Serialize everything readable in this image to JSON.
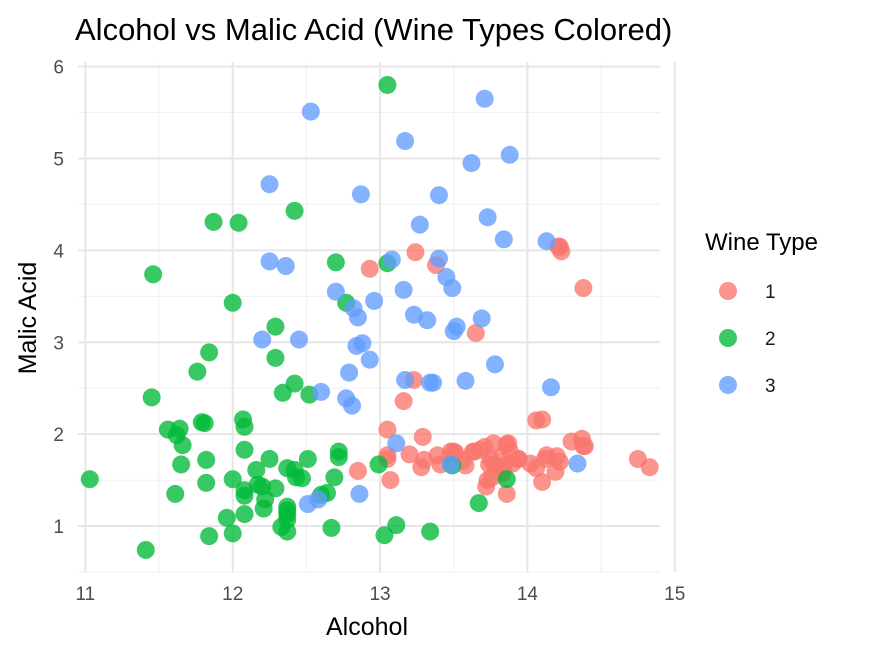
{
  "chart_data": {
    "type": "scatter",
    "title": "Alcohol vs Malic Acid (Wine Types Colored)",
    "xlabel": "Alcohol",
    "ylabel": "Malic Acid",
    "xlim": [
      10.95,
      14.9
    ],
    "ylim": [
      0.5,
      6.05
    ],
    "xticks": [
      "11",
      "12",
      "13",
      "14",
      "15"
    ],
    "yticks": [
      "1",
      "2",
      "3",
      "4",
      "5",
      "6"
    ],
    "grid": true,
    "legend": {
      "title": "Wine Type",
      "placement": "right"
    },
    "series": [
      {
        "name": "1",
        "color": "#F8766D",
        "points": [
          [
            12.93,
            3.8
          ],
          [
            13.24,
            3.98
          ],
          [
            13.38,
            3.84
          ],
          [
            14.22,
            4.04
          ],
          [
            14.23,
            3.99
          ],
          [
            14.38,
            3.59
          ],
          [
            13.65,
            3.1
          ],
          [
            13.23,
            2.59
          ],
          [
            13.16,
            2.36
          ],
          [
            13.05,
            2.05
          ],
          [
            14.06,
            2.15
          ],
          [
            14.1,
            2.16
          ],
          [
            13.05,
            1.77
          ],
          [
            13.05,
            1.73
          ],
          [
            13.07,
            1.5
          ],
          [
            12.85,
            1.6
          ],
          [
            13.28,
            1.64
          ],
          [
            13.3,
            1.72
          ],
          [
            13.2,
            1.78
          ],
          [
            13.29,
            1.97
          ],
          [
            13.39,
            1.77
          ],
          [
            13.41,
            1.67
          ],
          [
            13.48,
            1.81
          ],
          [
            13.5,
            1.81
          ],
          [
            13.51,
            1.8
          ],
          [
            13.56,
            1.71
          ],
          [
            13.64,
            1.81
          ],
          [
            13.68,
            1.83
          ],
          [
            13.71,
            1.86
          ],
          [
            13.72,
            1.43
          ],
          [
            13.73,
            1.5
          ],
          [
            13.74,
            1.67
          ],
          [
            13.75,
            1.73
          ],
          [
            13.76,
            1.53
          ],
          [
            13.77,
            1.9
          ],
          [
            13.78,
            1.66
          ],
          [
            13.82,
            1.75
          ],
          [
            13.83,
            1.57
          ],
          [
            13.84,
            1.65
          ],
          [
            13.86,
            1.35
          ],
          [
            13.86,
            1.89
          ],
          [
            13.87,
            1.9
          ],
          [
            13.88,
            1.82
          ],
          [
            13.94,
            1.73
          ],
          [
            14.02,
            1.68
          ],
          [
            14.06,
            1.63
          ],
          [
            14.1,
            1.48
          ],
          [
            14.12,
            1.73
          ],
          [
            14.19,
            1.59
          ],
          [
            14.2,
            1.76
          ],
          [
            14.21,
            4.04
          ],
          [
            14.22,
            1.7
          ],
          [
            14.3,
            1.92
          ],
          [
            14.37,
            1.95
          ],
          [
            14.38,
            1.87
          ],
          [
            14.39,
            1.87
          ],
          [
            14.75,
            1.73
          ],
          [
            14.83,
            1.64
          ],
          [
            13.58,
            1.66
          ],
          [
            13.9,
            1.68
          ],
          [
            13.63,
            1.81
          ],
          [
            14.13,
            1.77
          ],
          [
            13.94,
            1.73
          ]
        ]
      },
      {
        "name": "2",
        "color": "#00BA38",
        "points": [
          [
            11.03,
            1.51
          ],
          [
            11.41,
            0.74
          ],
          [
            11.45,
            2.4
          ],
          [
            11.46,
            3.74
          ],
          [
            11.56,
            2.05
          ],
          [
            11.61,
            1.35
          ],
          [
            11.62,
            1.99
          ],
          [
            11.64,
            2.06
          ],
          [
            11.65,
            1.67
          ],
          [
            11.66,
            1.88
          ],
          [
            11.76,
            2.68
          ],
          [
            11.79,
            2.13
          ],
          [
            11.81,
            2.12
          ],
          [
            11.82,
            1.72
          ],
          [
            11.82,
            1.47
          ],
          [
            11.84,
            0.89
          ],
          [
            11.84,
            2.89
          ],
          [
            11.87,
            4.31
          ],
          [
            11.96,
            1.09
          ],
          [
            12.0,
            0.92
          ],
          [
            12.0,
            1.51
          ],
          [
            12.0,
            3.43
          ],
          [
            12.04,
            4.3
          ],
          [
            12.07,
            2.16
          ],
          [
            12.08,
            1.33
          ],
          [
            12.08,
            1.13
          ],
          [
            12.08,
            1.83
          ],
          [
            12.08,
            2.08
          ],
          [
            12.08,
            1.39
          ],
          [
            12.16,
            1.61
          ],
          [
            12.17,
            1.45
          ],
          [
            12.2,
            1.43
          ],
          [
            12.21,
            1.19
          ],
          [
            12.22,
            1.29
          ],
          [
            12.25,
            1.73
          ],
          [
            12.29,
            3.17
          ],
          [
            12.29,
            2.83
          ],
          [
            12.29,
            1.41
          ],
          [
            12.33,
            0.99
          ],
          [
            12.34,
            2.45
          ],
          [
            12.37,
            1.17
          ],
          [
            12.37,
            1.07
          ],
          [
            12.37,
            1.13
          ],
          [
            12.37,
            1.21
          ],
          [
            12.37,
            0.94
          ],
          [
            12.37,
            1.63
          ],
          [
            12.42,
            2.55
          ],
          [
            12.42,
            4.43
          ],
          [
            12.42,
            1.61
          ],
          [
            12.43,
            1.53
          ],
          [
            12.47,
            1.52
          ],
          [
            12.51,
            1.73
          ],
          [
            12.52,
            2.43
          ],
          [
            12.6,
            1.34
          ],
          [
            12.64,
            1.36
          ],
          [
            12.67,
            0.98
          ],
          [
            12.69,
            1.53
          ],
          [
            12.7,
            3.87
          ],
          [
            12.72,
            1.81
          ],
          [
            12.72,
            1.75
          ],
          [
            12.77,
            3.43
          ],
          [
            12.99,
            1.67
          ],
          [
            13.03,
            0.9
          ],
          [
            13.05,
            3.86
          ],
          [
            13.05,
            5.8
          ],
          [
            13.11,
            1.01
          ],
          [
            13.34,
            0.94
          ],
          [
            13.49,
            1.66
          ],
          [
            13.67,
            1.25
          ],
          [
            13.86,
            1.51
          ]
        ]
      },
      {
        "name": "3",
        "color": "#619CFF",
        "points": [
          [
            12.2,
            3.03
          ],
          [
            12.25,
            4.72
          ],
          [
            12.25,
            3.88
          ],
          [
            12.36,
            3.83
          ],
          [
            12.51,
            1.24
          ],
          [
            12.53,
            5.51
          ],
          [
            12.58,
            1.29
          ],
          [
            12.6,
            2.46
          ],
          [
            12.45,
            3.03
          ],
          [
            12.7,
            3.55
          ],
          [
            12.77,
            2.39
          ],
          [
            12.79,
            2.67
          ],
          [
            12.81,
            2.31
          ],
          [
            12.82,
            3.37
          ],
          [
            12.84,
            2.96
          ],
          [
            12.85,
            3.27
          ],
          [
            12.86,
            1.35
          ],
          [
            12.87,
            4.61
          ],
          [
            12.88,
            2.99
          ],
          [
            12.93,
            2.81
          ],
          [
            12.96,
            3.45
          ],
          [
            13.08,
            3.9
          ],
          [
            13.11,
            1.9
          ],
          [
            13.16,
            3.57
          ],
          [
            13.17,
            2.59
          ],
          [
            13.17,
            5.19
          ],
          [
            13.23,
            3.3
          ],
          [
            13.27,
            4.28
          ],
          [
            13.32,
            3.24
          ],
          [
            13.34,
            2.56
          ],
          [
            13.36,
            2.56
          ],
          [
            13.4,
            3.91
          ],
          [
            13.4,
            4.6
          ],
          [
            13.45,
            3.71
          ],
          [
            13.48,
            1.67
          ],
          [
            13.49,
            3.59
          ],
          [
            13.5,
            3.12
          ],
          [
            13.52,
            3.17
          ],
          [
            13.58,
            2.58
          ],
          [
            13.62,
            4.95
          ],
          [
            13.69,
            3.26
          ],
          [
            13.71,
            5.65
          ],
          [
            13.73,
            4.36
          ],
          [
            13.78,
            2.76
          ],
          [
            13.84,
            4.12
          ],
          [
            13.88,
            5.04
          ],
          [
            14.13,
            4.1
          ],
          [
            14.16,
            2.51
          ],
          [
            14.34,
            1.68
          ]
        ]
      }
    ]
  }
}
